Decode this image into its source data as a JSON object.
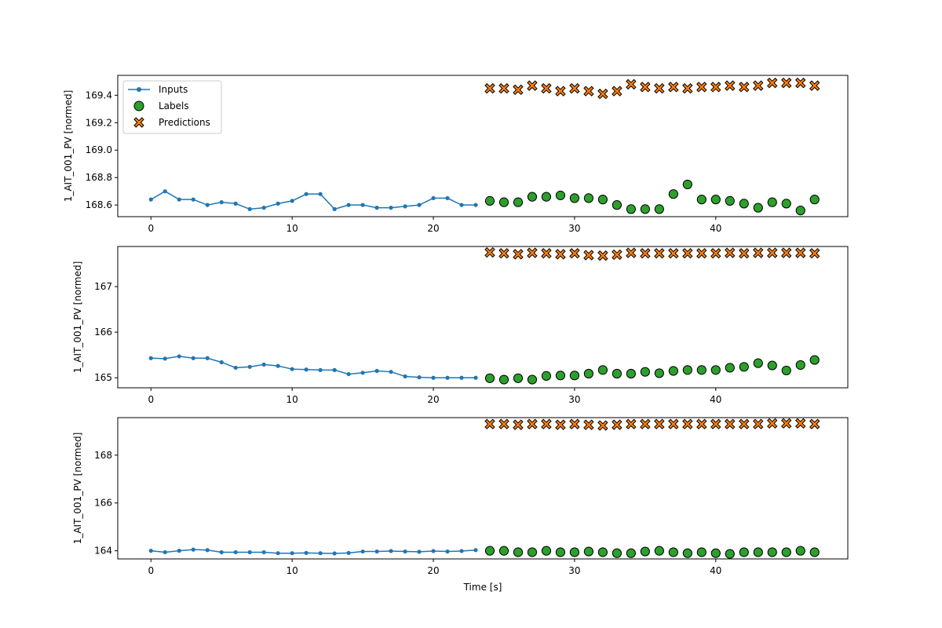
{
  "colors": {
    "inputs": "#1f77b4",
    "labels": "#2ca02c",
    "predictions": "#ff7f0e",
    "edge": "#000000"
  },
  "legend": {
    "placement": "upper-left",
    "entries": [
      {
        "key": "inputs",
        "label": "Inputs",
        "marker": "line-dot"
      },
      {
        "key": "labels",
        "label": "Labels",
        "marker": "circle"
      },
      {
        "key": "predictions",
        "label": "Predictions",
        "marker": "x"
      }
    ]
  },
  "chart_data": [
    {
      "type": "scatter",
      "ylabel": "1_AIT_001_PV [normed]",
      "xlabel": "",
      "xlim": [
        -2.35,
        49.35
      ],
      "ylim": [
        168.515,
        169.545
      ],
      "xticks": [
        0,
        10,
        20,
        30,
        40
      ],
      "yticks": [
        168.6,
        168.8,
        169.0,
        169.2,
        169.4
      ],
      "ytick_labels": [
        "168.6",
        "168.8",
        "169.0",
        "169.2",
        "169.4"
      ],
      "show_legend": true,
      "inputs": {
        "x_start": 0,
        "values": [
          168.64,
          168.7,
          168.64,
          168.64,
          168.6,
          168.62,
          168.61,
          168.57,
          168.58,
          168.61,
          168.63,
          168.68,
          168.68,
          168.57,
          168.6,
          168.6,
          168.58,
          168.58,
          168.59,
          168.6,
          168.65,
          168.65,
          168.6,
          168.6
        ]
      },
      "labels": {
        "x_start": 24,
        "values": [
          168.63,
          168.62,
          168.62,
          168.66,
          168.66,
          168.67,
          168.65,
          168.65,
          168.64,
          168.6,
          168.57,
          168.57,
          168.57,
          168.68,
          168.75,
          168.64,
          168.64,
          168.63,
          168.61,
          168.58,
          168.62,
          168.61,
          168.56,
          168.64
        ]
      },
      "predictions": {
        "x_start": 24,
        "values": [
          169.45,
          169.45,
          169.44,
          169.47,
          169.45,
          169.43,
          169.45,
          169.43,
          169.41,
          169.43,
          169.48,
          169.46,
          169.45,
          169.46,
          169.45,
          169.46,
          169.46,
          169.47,
          169.46,
          169.47,
          169.49,
          169.49,
          169.49,
          169.47
        ]
      }
    },
    {
      "type": "scatter",
      "ylabel": "1_AIT_001_PV [normed]",
      "xlabel": "",
      "xlim": [
        -2.35,
        49.35
      ],
      "ylim": [
        164.78,
        167.88
      ],
      "xticks": [
        0,
        10,
        20,
        30,
        40
      ],
      "yticks": [
        165,
        166,
        167
      ],
      "ytick_labels": [
        "165",
        "166",
        "167"
      ],
      "show_legend": false,
      "inputs": {
        "x_start": 0,
        "values": [
          165.43,
          165.42,
          165.47,
          165.43,
          165.43,
          165.34,
          165.22,
          165.24,
          165.29,
          165.26,
          165.19,
          165.18,
          165.17,
          165.17,
          165.08,
          165.11,
          165.15,
          165.13,
          165.03,
          165.01,
          165.0,
          165.0,
          165.0,
          165.0
        ]
      },
      "labels": {
        "x_start": 24,
        "values": [
          164.99,
          164.96,
          164.99,
          164.96,
          165.04,
          165.05,
          165.05,
          165.09,
          165.17,
          165.09,
          165.09,
          165.13,
          165.1,
          165.15,
          165.17,
          165.17,
          165.17,
          165.22,
          165.24,
          165.32,
          165.27,
          165.16,
          165.28,
          165.39
        ]
      },
      "predictions": {
        "x_start": 24,
        "values": [
          167.75,
          167.73,
          167.71,
          167.74,
          167.73,
          167.71,
          167.73,
          167.69,
          167.68,
          167.7,
          167.74,
          167.73,
          167.73,
          167.73,
          167.73,
          167.73,
          167.73,
          167.74,
          167.73,
          167.74,
          167.74,
          167.74,
          167.74,
          167.73
        ]
      }
    },
    {
      "type": "scatter",
      "ylabel": "1_AIT_001_PV [normed]",
      "xlabel": "Time [s]",
      "xlim": [
        -2.35,
        49.35
      ],
      "ylim": [
        163.66,
        169.57
      ],
      "xticks": [
        0,
        10,
        20,
        30,
        40
      ],
      "yticks": [
        164,
        166,
        168
      ],
      "ytick_labels": [
        "164",
        "166",
        "168"
      ],
      "show_legend": false,
      "inputs": {
        "x_start": 0,
        "values": [
          164.0,
          163.94,
          164.0,
          164.05,
          164.03,
          163.94,
          163.94,
          163.94,
          163.94,
          163.9,
          163.9,
          163.91,
          163.9,
          163.89,
          163.91,
          163.97,
          163.97,
          163.99,
          163.97,
          163.96,
          163.99,
          163.97,
          163.99,
          164.03
        ]
      },
      "labels": {
        "x_start": 24,
        "values": [
          164.0,
          164.0,
          163.94,
          163.94,
          164.0,
          163.94,
          163.94,
          163.97,
          163.94,
          163.9,
          163.9,
          163.97,
          164.0,
          163.94,
          163.9,
          163.94,
          163.9,
          163.87,
          163.94,
          163.94,
          163.94,
          163.94,
          164.0,
          163.94
        ]
      },
      "predictions": {
        "x_start": 24,
        "values": [
          169.3,
          169.3,
          169.27,
          169.3,
          169.3,
          169.27,
          169.3,
          169.27,
          169.24,
          169.27,
          169.3,
          169.3,
          169.3,
          169.3,
          169.3,
          169.3,
          169.3,
          169.3,
          169.3,
          169.3,
          169.33,
          169.33,
          169.33,
          169.3
        ]
      }
    }
  ]
}
